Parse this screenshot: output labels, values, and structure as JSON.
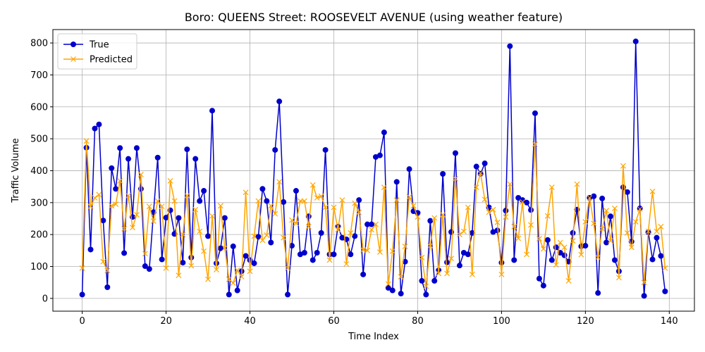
{
  "chart_data": {
    "type": "line",
    "title": "Boro: QUEENS Street: ROOSEVELT AVENUE (using weather feature)",
    "xlabel": "Time Index",
    "ylabel": "Traffic Volume",
    "xlim": [
      -7,
      146
    ],
    "ylim": [
      -40,
      842
    ],
    "xticks": [
      0,
      20,
      40,
      60,
      80,
      100,
      120,
      140
    ],
    "yticks": [
      0,
      100,
      200,
      300,
      400,
      500,
      600,
      700,
      800
    ],
    "xtick_labels": [
      "0",
      "20",
      "40",
      "60",
      "80",
      "100",
      "120",
      "140"
    ],
    "ytick_labels": [
      "0",
      "100",
      "200",
      "300",
      "400",
      "500",
      "600",
      "700",
      "800"
    ],
    "grid": true,
    "legend_position": "top-left",
    "legend_entries": [
      "True",
      "Predicted"
    ],
    "series": [
      {
        "name": "True",
        "color": "#0000cc",
        "marker": "circle",
        "values": [
          12,
          472,
          153,
          532,
          545,
          244,
          35,
          408,
          343,
          471,
          142,
          437,
          255,
          471,
          343,
          101,
          92,
          270,
          441,
          122,
          253,
          276,
          202,
          252,
          112,
          467,
          128,
          437,
          305,
          337,
          195,
          588,
          110,
          157,
          252,
          12,
          163,
          25,
          85,
          133,
          120,
          110,
          193,
          343,
          305,
          175,
          465,
          617,
          302,
          12,
          165,
          337,
          138,
          143,
          257,
          120,
          143,
          205,
          465,
          138,
          138,
          225,
          190,
          185,
          138,
          195,
          308,
          75,
          232,
          232,
          443,
          448,
          520,
          33,
          25,
          365,
          15,
          115,
          405,
          273,
          268,
          55,
          12,
          243,
          55,
          88,
          390,
          113,
          208,
          455,
          103,
          143,
          138,
          205,
          413,
          390,
          423,
          285,
          208,
          213,
          112,
          275,
          790,
          120,
          315,
          308,
          300,
          277,
          580,
          62,
          40,
          183,
          120,
          160,
          143,
          135,
          115,
          205,
          278,
          163,
          165,
          315,
          320,
          17,
          313,
          175,
          257,
          120,
          85,
          348,
          333,
          178,
          805,
          282,
          8,
          207,
          122,
          190,
          133,
          22
        ]
      },
      {
        "name": "Predicted",
        "color": "#ffa500",
        "marker": "x",
        "values": [
          95,
          493,
          288,
          315,
          325,
          115,
          87,
          290,
          295,
          368,
          218,
          322,
          222,
          262,
          388,
          140,
          288,
          242,
          305,
          288,
          95,
          368,
          305,
          72,
          200,
          322,
          102,
          278,
          210,
          148,
          60,
          258,
          90,
          290,
          158,
          60,
          48,
          88,
          68,
          332,
          85,
          195,
          305,
          182,
          198,
          290,
          265,
          365,
          190,
          95,
          245,
          235,
          305,
          305,
          225,
          355,
          315,
          320,
          285,
          120,
          285,
          215,
          308,
          108,
          205,
          298,
          270,
          152,
          150,
          215,
          232,
          145,
          348,
          45,
          148,
          308,
          68,
          163,
          318,
          290,
          255,
          128,
          38,
          165,
          252,
          78,
          262,
          78,
          125,
          375,
          200,
          210,
          285,
          75,
          348,
          392,
          310,
          270,
          278,
          238,
          75,
          255,
          358,
          225,
          188,
          302,
          138,
          230,
          483,
          187,
          155,
          258,
          348,
          105,
          175,
          160,
          55,
          180,
          358,
          137,
          240,
          315,
          235,
          128,
          218,
          275,
          180,
          282,
          65,
          415,
          205,
          160,
          240,
          280,
          50,
          210,
          335,
          210,
          225,
          95
        ]
      }
    ]
  }
}
